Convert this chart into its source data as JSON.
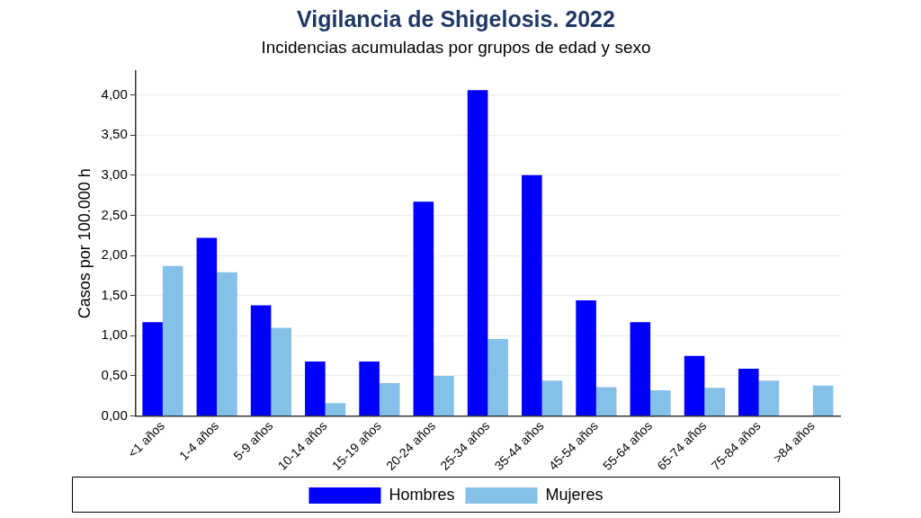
{
  "chart_data": {
    "type": "bar",
    "title": "Vigilancia de Shigelosis. 2022",
    "subtitle": "Incidencias acumuladas por grupos de edad y sexo",
    "ylabel": "Casos por 100.000 h",
    "categories": [
      "<1 años",
      "1-4 años",
      "5-9 años",
      "10-14 años",
      "15-19 años",
      "20-24 años",
      "25-34 años",
      "35-44 años",
      "45-54 años",
      "55-64 años",
      "65-74 años",
      "75-84 años",
      ">84 años"
    ],
    "series": [
      {
        "name": "Hombres",
        "color": "#0000ff",
        "values": [
          1.17,
          2.22,
          1.38,
          0.68,
          0.68,
          2.67,
          4.06,
          3.0,
          1.44,
          1.17,
          0.75,
          0.59,
          0
        ]
      },
      {
        "name": "Mujeres",
        "color": "#85c0e9",
        "values": [
          1.87,
          1.79,
          1.1,
          0.16,
          0.41,
          0.5,
          0.96,
          0.44,
          0.36,
          0.32,
          0.35,
          0.44,
          0.38
        ]
      }
    ],
    "ylim": [
      0,
      4.3
    ],
    "yticks": [
      {
        "value": 0,
        "label": "0,00"
      },
      {
        "value": 0.5,
        "label": "0,50"
      },
      {
        "value": 1,
        "label": "1,00"
      },
      {
        "value": 1.5,
        "label": "1,50"
      },
      {
        "value": 2,
        "label": "2,00"
      },
      {
        "value": 2.5,
        "label": "2,50"
      },
      {
        "value": 3,
        "label": "3,00"
      },
      {
        "value": 3.5,
        "label": "3,50"
      },
      {
        "value": 4,
        "label": "4,00"
      }
    ],
    "grid": "y",
    "legend": "bottom"
  }
}
